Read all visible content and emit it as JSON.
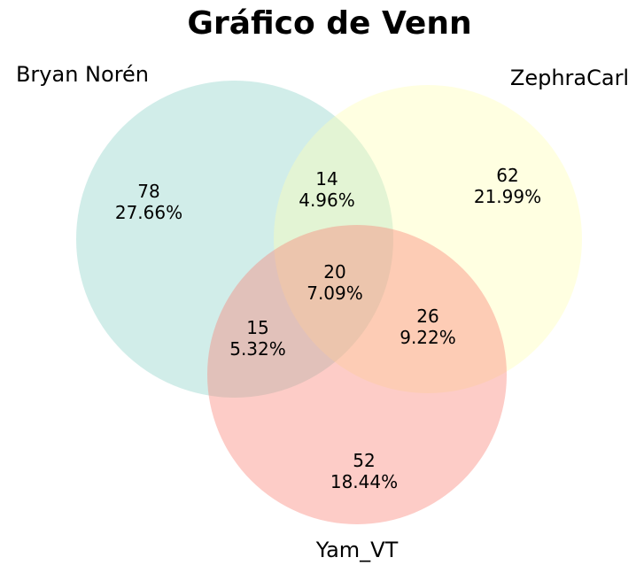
{
  "chart_data": {
    "type": "venn",
    "title": "Gráfico de Venn",
    "sets": [
      {
        "name": "Bryan Norén",
        "color": "#8dd3c7"
      },
      {
        "name": "ZephraCarl",
        "color": "#ffffb3"
      },
      {
        "name": "Yam_VT",
        "color": "#fb8072"
      }
    ],
    "regions": [
      {
        "sets": [
          "Bryan Norén"
        ],
        "count": "78",
        "percent": "27.66%"
      },
      {
        "sets": [
          "ZephraCarl"
        ],
        "count": "62",
        "percent": "21.99%"
      },
      {
        "sets": [
          "Yam_VT"
        ],
        "count": "52",
        "percent": "18.44%"
      },
      {
        "sets": [
          "Bryan Norén",
          "ZephraCarl"
        ],
        "count": "14",
        "percent": "4.96%"
      },
      {
        "sets": [
          "Bryan Norén",
          "Yam_VT"
        ],
        "count": "15",
        "percent": "5.32%"
      },
      {
        "sets": [
          "ZephraCarl",
          "Yam_VT"
        ],
        "count": "26",
        "percent": "9.22%"
      },
      {
        "sets": [
          "Bryan Norén",
          "ZephraCarl",
          "Yam_VT"
        ],
        "count": "20",
        "percent": "7.09%"
      }
    ]
  }
}
